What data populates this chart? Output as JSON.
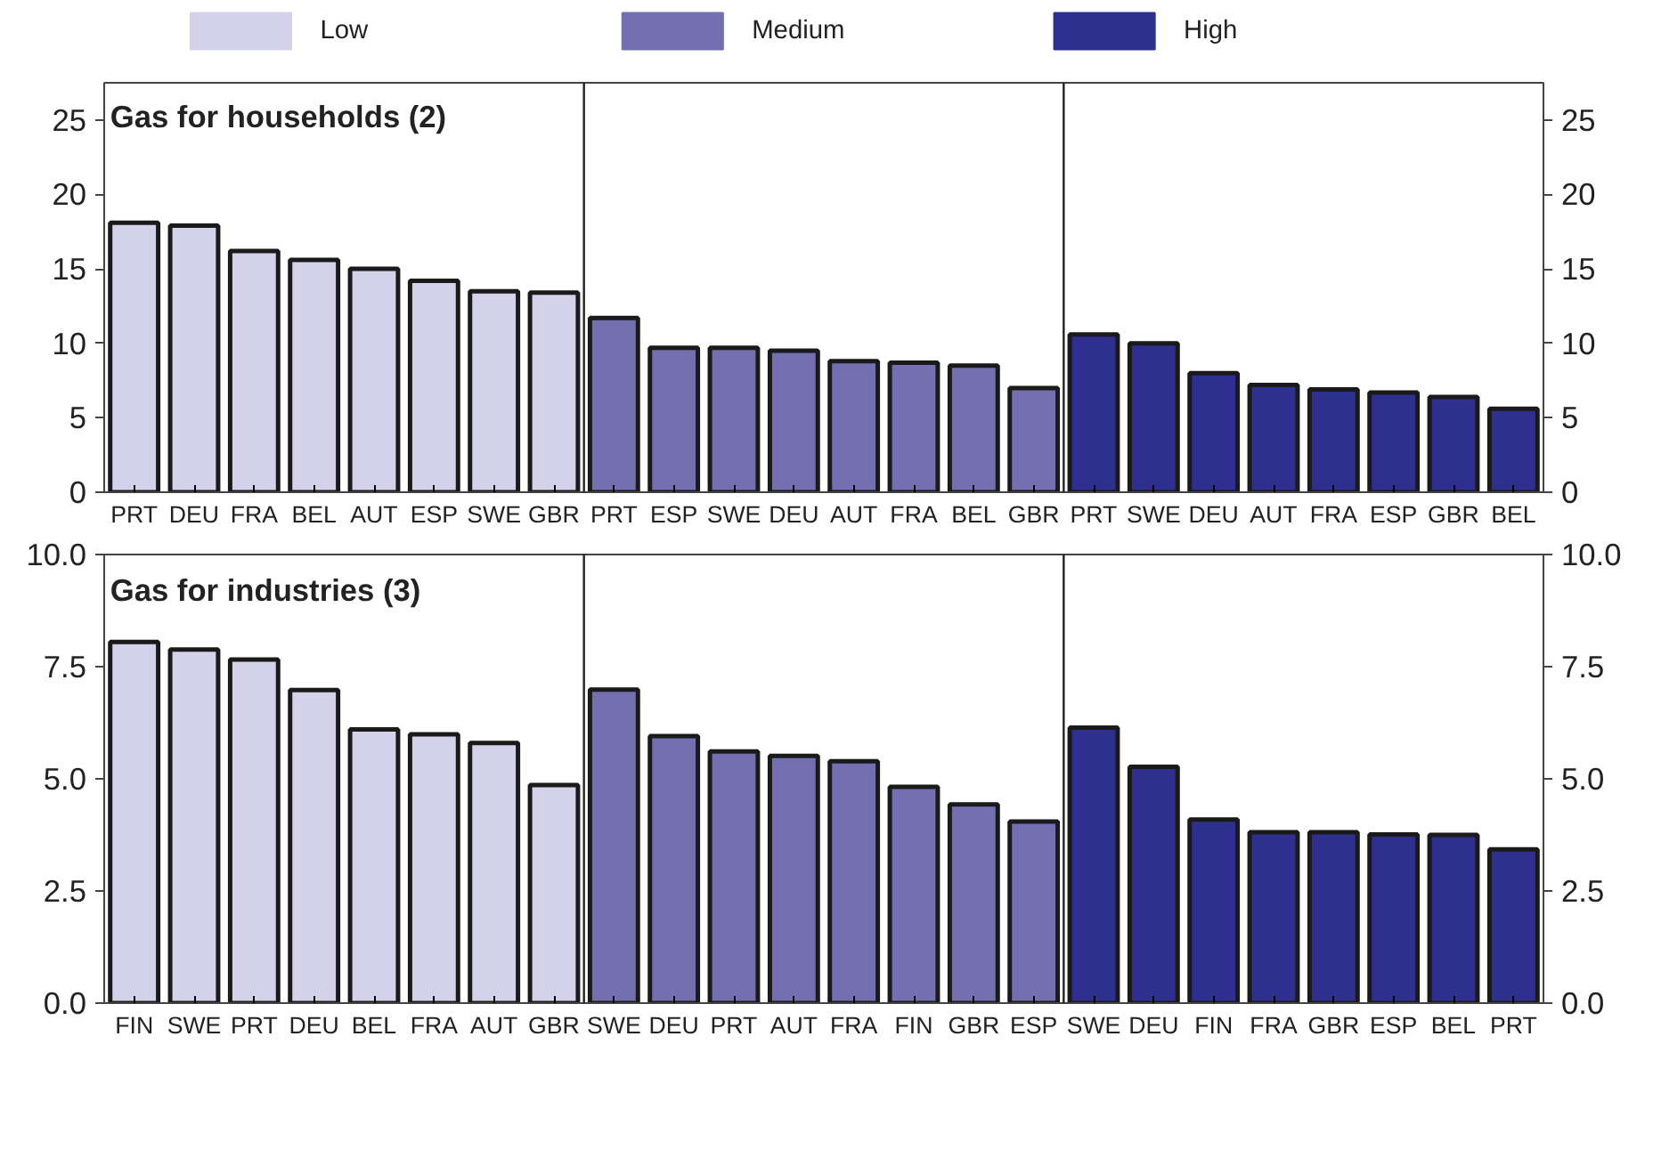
{
  "chart_data": [
    {
      "type": "bar",
      "title": "Gas for households (2)",
      "categories": [
        "PRT",
        "DEU",
        "FRA",
        "BEL",
        "AUT",
        "ESP",
        "SWE",
        "GBR",
        "PRT",
        "ESP",
        "SWE",
        "DEU",
        "AUT",
        "FRA",
        "BEL",
        "GBR",
        "PRT",
        "SWE",
        "DEU",
        "AUT",
        "FRA",
        "ESP",
        "GBR",
        "BEL"
      ],
      "series": [
        {
          "name": "Low",
          "color": "#d4d2ea",
          "values": [
            18.1,
            17.9,
            16.2,
            15.6,
            15.0,
            14.2,
            13.5,
            13.4,
            null,
            null,
            null,
            null,
            null,
            null,
            null,
            null,
            null,
            null,
            null,
            null,
            null,
            null,
            null,
            null
          ]
        },
        {
          "name": "Medium",
          "color": "#736fb0",
          "values": [
            null,
            null,
            null,
            null,
            null,
            null,
            null,
            null,
            11.7,
            9.7,
            9.7,
            9.5,
            8.8,
            8.7,
            8.5,
            7.0,
            null,
            null,
            null,
            null,
            null,
            null,
            null,
            null
          ]
        },
        {
          "name": "High",
          "color": "#2e2f8f",
          "values": [
            null,
            null,
            null,
            null,
            null,
            null,
            null,
            null,
            null,
            null,
            null,
            null,
            null,
            null,
            null,
            null,
            10.6,
            10.0,
            8.0,
            7.2,
            6.9,
            6.7,
            6.4,
            5.6
          ]
        }
      ],
      "ylim": [
        0,
        27.5
      ],
      "yticks": [
        0,
        5,
        10,
        15,
        20,
        25
      ],
      "y2lim": [
        0,
        27.5
      ],
      "y2ticks": [
        0,
        5,
        10,
        15,
        20,
        25
      ],
      "grid": false,
      "legend": "top"
    },
    {
      "type": "bar",
      "title": "Gas for industries (3)",
      "categories": [
        "FIN",
        "SWE",
        "PRT",
        "DEU",
        "BEL",
        "FRA",
        "AUT",
        "GBR",
        "SWE",
        "DEU",
        "PRT",
        "AUT",
        "FRA",
        "FIN",
        "GBR",
        "ESP",
        "SWE",
        "DEU",
        "FIN",
        "FRA",
        "GBR",
        "ESP",
        "BEL",
        "PRT"
      ],
      "series": [
        {
          "color": "#d4d2ea",
          "values": [
            8.05,
            7.88,
            7.66,
            6.98,
            6.1,
            5.99,
            5.8,
            4.86,
            null,
            null,
            null,
            null,
            null,
            null,
            null,
            null,
            null,
            null,
            null,
            null,
            null,
            null,
            null,
            null
          ]
        },
        {
          "color": "#736fb0",
          "values": [
            null,
            null,
            null,
            null,
            null,
            null,
            null,
            null,
            6.99,
            5.95,
            5.61,
            5.51,
            5.39,
            4.82,
            4.43,
            4.05,
            null,
            null,
            null,
            null,
            null,
            null,
            null,
            null
          ]
        },
        {
          "color": "#2e2f8f",
          "values": [
            null,
            null,
            null,
            null,
            null,
            null,
            null,
            null,
            null,
            null,
            null,
            null,
            null,
            null,
            null,
            null,
            6.14,
            5.27,
            4.09,
            3.81,
            3.81,
            3.76,
            3.75,
            3.43
          ]
        }
      ],
      "ylim": [
        0,
        10
      ],
      "yticks": [
        {
          "value": 0,
          "label": "0.0"
        },
        {
          "value": 2.5,
          "label": "2.5"
        },
        {
          "value": 5,
          "label": "5.0"
        },
        {
          "value": 7.5,
          "label": "7.5"
        },
        {
          "value": 10,
          "label": "10.0"
        }
      ],
      "y2lim": [
        0,
        10
      ],
      "y2ticks": [
        {
          "value": 0,
          "label": "0.0"
        },
        {
          "value": 2.5,
          "label": "2.5"
        },
        {
          "value": 5,
          "label": "5.0"
        },
        {
          "value": 7.5,
          "label": "7.5"
        },
        {
          "value": 10,
          "label": "10.0"
        }
      ],
      "grid": false,
      "legend": false
    }
  ]
}
